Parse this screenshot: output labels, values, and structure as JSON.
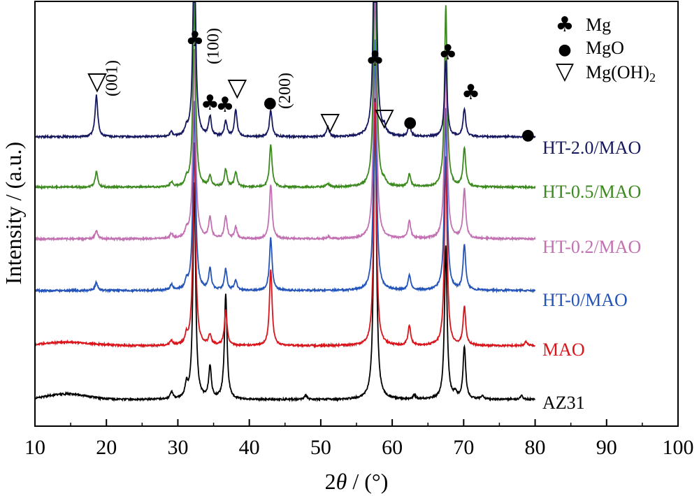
{
  "chart_data": {
    "type": "line",
    "xlabel_prefix": "2",
    "xlabel_theta": "θ",
    "xlabel_suffix": " / (°)",
    "ylabel": "Intensity / (a.u.)",
    "xlim": [
      10,
      100
    ],
    "x_ticks": [
      "10",
      "20",
      "30",
      "40",
      "50",
      "60",
      "70",
      "80",
      "90",
      "100"
    ],
    "y_ticks_shown": false,
    "series": [
      {
        "name": "AZ31",
        "color": "#000000",
        "peaks": [
          [
            29.1,
            10
          ],
          [
            31.2,
            18
          ],
          [
            32.3,
            310
          ],
          [
            34.5,
            45
          ],
          [
            36.7,
            150
          ],
          [
            47.9,
            6
          ],
          [
            57.6,
            430
          ],
          [
            63.1,
            6
          ],
          [
            67.5,
            220
          ],
          [
            68.8,
            8
          ],
          [
            70.1,
            75
          ],
          [
            72.6,
            5
          ],
          [
            78.1,
            6
          ]
        ]
      },
      {
        "name": "MAO",
        "color": "#d9141b",
        "peaks": [
          [
            29.1,
            7
          ],
          [
            31.2,
            12
          ],
          [
            32.3,
            290
          ],
          [
            34.5,
            15
          ],
          [
            36.7,
            50
          ],
          [
            43.0,
            110
          ],
          [
            57.6,
            350
          ],
          [
            62.4,
            28
          ],
          [
            67.5,
            270
          ],
          [
            70.1,
            55
          ],
          [
            78.7,
            6
          ]
        ]
      },
      {
        "name": "HT-0/MAO",
        "color": "#2554b8",
        "peaks": [
          [
            18.6,
            12
          ],
          [
            29.1,
            8
          ],
          [
            31.2,
            12
          ],
          [
            32.3,
            270
          ],
          [
            34.5,
            30
          ],
          [
            36.7,
            30
          ],
          [
            38.1,
            14
          ],
          [
            43.0,
            75
          ],
          [
            57.6,
            360
          ],
          [
            62.4,
            22
          ],
          [
            67.5,
            260
          ],
          [
            70.1,
            65
          ]
        ]
      },
      {
        "name": "HT-0.2/MAO",
        "color": "#c271b2",
        "peaks": [
          [
            18.6,
            12
          ],
          [
            29.1,
            7
          ],
          [
            31.2,
            10
          ],
          [
            32.3,
            270
          ],
          [
            34.5,
            30
          ],
          [
            36.7,
            32
          ],
          [
            38.1,
            16
          ],
          [
            43.0,
            78
          ],
          [
            51.1,
            3
          ],
          [
            57.6,
            380
          ],
          [
            62.4,
            25
          ],
          [
            67.5,
            260
          ],
          [
            70.1,
            70
          ]
        ]
      },
      {
        "name": "HT-0.5/MAO",
        "color": "#3c8a1f",
        "peaks": [
          [
            18.6,
            22
          ],
          [
            29.1,
            7
          ],
          [
            31.2,
            10
          ],
          [
            32.3,
            270
          ],
          [
            34.5,
            15
          ],
          [
            36.7,
            25
          ],
          [
            38.1,
            22
          ],
          [
            43.0,
            60
          ],
          [
            51.0,
            5
          ],
          [
            57.6,
            400
          ],
          [
            58.9,
            5
          ],
          [
            62.4,
            18
          ],
          [
            67.5,
            260
          ],
          [
            70.1,
            55
          ]
        ]
      },
      {
        "name": "HT-2.0/MAO",
        "color": "#16185f",
        "peaks": [
          [
            18.6,
            60
          ],
          [
            29.1,
            6
          ],
          [
            31.2,
            10
          ],
          [
            32.3,
            300
          ],
          [
            34.5,
            28
          ],
          [
            36.7,
            22
          ],
          [
            38.1,
            38
          ],
          [
            43.0,
            38
          ],
          [
            51.0,
            14
          ],
          [
            57.6,
            440
          ],
          [
            58.9,
            10
          ],
          [
            62.4,
            18
          ],
          [
            67.5,
            110
          ],
          [
            70.1,
            40
          ],
          [
            79.0,
            4
          ]
        ]
      }
    ],
    "legend": [
      {
        "symbol": "♣",
        "label": "Mg"
      },
      {
        "symbol": "●",
        "label": "MgO"
      },
      {
        "symbol": "▽",
        "label": "Mg(OH)",
        "subscript": "2"
      }
    ],
    "annotations": {
      "hkl": [
        {
          "text": "(001)",
          "x": 21.5
        },
        {
          "text": "(100)",
          "x": 35.7
        },
        {
          "text": "(200)",
          "x": 45.7
        }
      ],
      "markers": [
        {
          "symbol": "▽",
          "x": 18.7
        },
        {
          "symbol": "♣",
          "x": 32.4
        },
        {
          "symbol": "♣",
          "x": 34.5
        },
        {
          "symbol": "♣",
          "x": 36.6
        },
        {
          "symbol": "▽",
          "x": 38.3
        },
        {
          "symbol": "●",
          "x": 42.9
        },
        {
          "symbol": "▽",
          "x": 51.3
        },
        {
          "symbol": "♣",
          "x": 57.6
        },
        {
          "symbol": "▽",
          "x": 58.9
        },
        {
          "symbol": "●",
          "x": 62.5
        },
        {
          "symbol": "♣",
          "x": 67.8
        },
        {
          "symbol": "♣",
          "x": 71.0
        },
        {
          "symbol": "●",
          "x": 79.0
        }
      ]
    }
  }
}
